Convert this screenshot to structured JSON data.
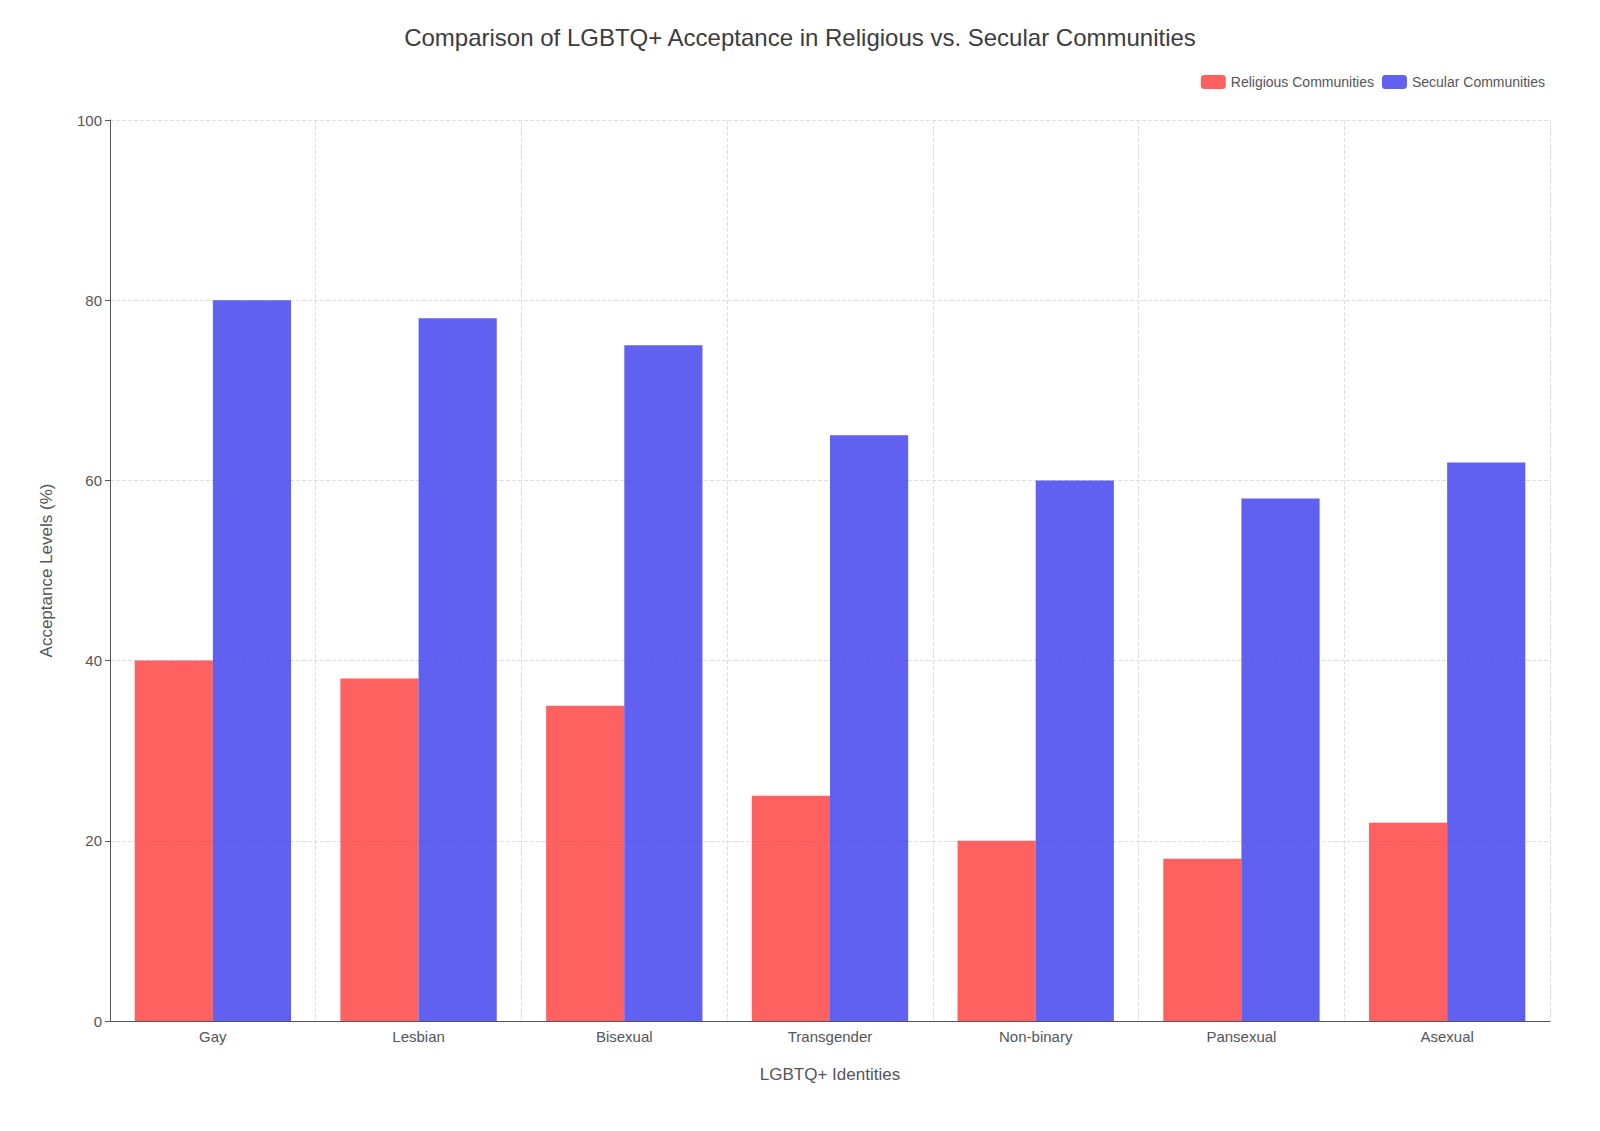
{
  "chart_data": {
    "type": "bar",
    "title": "Comparison of LGBTQ+ Acceptance in Religious vs. Secular Communities",
    "xlabel": "LGBTQ+ Identities",
    "ylabel": "Acceptance Levels (%)",
    "categories": [
      "Gay",
      "Lesbian",
      "Bisexual",
      "Transgender",
      "Non-binary",
      "Pansexual",
      "Asexual"
    ],
    "series": [
      {
        "name": "Religious Communities",
        "color": "#FF4444",
        "values": [
          40,
          38,
          35,
          25,
          20,
          18,
          22
        ]
      },
      {
        "name": "Secular Communities",
        "color": "#4444EE",
        "values": [
          80,
          78,
          75,
          65,
          60,
          58,
          62
        ]
      }
    ],
    "ylim": [
      0,
      100
    ],
    "yticks": [
      0,
      20,
      40,
      60,
      80,
      100
    ],
    "grid": true,
    "legend": "upper right"
  }
}
